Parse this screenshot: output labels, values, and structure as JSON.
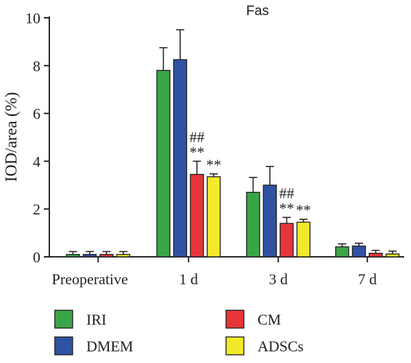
{
  "chart_data": {
    "type": "bar",
    "title": "Fas",
    "ylabel": "IOD/area (%)",
    "xlabel": "",
    "ylim": [
      0,
      10
    ],
    "yticks": [
      0,
      2,
      4,
      6,
      8,
      10
    ],
    "categories": [
      "Preoperative",
      "1 d",
      "3 d",
      "7 d"
    ],
    "series": [
      {
        "name": "IRI",
        "color": "#3aa547",
        "values": [
          0.1,
          7.8,
          2.7,
          0.42
        ],
        "errors": [
          0.12,
          0.95,
          0.62,
          0.12
        ]
      },
      {
        "name": "DMEM",
        "color": "#2f52a3",
        "values": [
          0.1,
          8.25,
          3.0,
          0.45
        ],
        "errors": [
          0.12,
          1.25,
          0.78,
          0.12
        ]
      },
      {
        "name": "CM",
        "color": "#e8353a",
        "values": [
          0.1,
          3.45,
          1.4,
          0.15
        ],
        "errors": [
          0.12,
          0.55,
          0.25,
          0.12
        ]
      },
      {
        "name": "ADSCs",
        "color": "#f2ea28",
        "values": [
          0.1,
          3.35,
          1.45,
          0.12
        ],
        "errors": [
          0.12,
          0.12,
          0.12,
          0.12
        ]
      }
    ],
    "annotations": [
      {
        "category": 1,
        "series": 2,
        "lines": [
          "##",
          "**"
        ]
      },
      {
        "category": 1,
        "series": 3,
        "lines": [
          "**"
        ]
      },
      {
        "category": 2,
        "series": 2,
        "lines": [
          "##",
          "**"
        ]
      },
      {
        "category": 2,
        "series": 3,
        "lines": [
          "**"
        ]
      }
    ],
    "legend_placement": "bottom",
    "grid": false
  }
}
